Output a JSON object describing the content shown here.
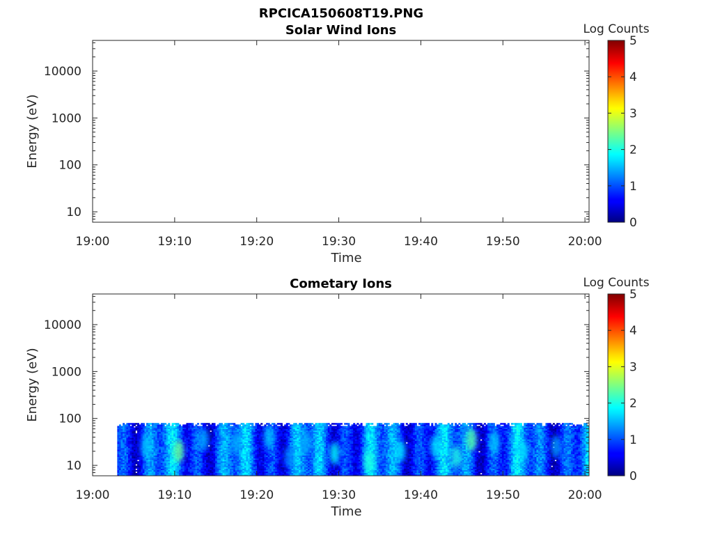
{
  "figure": {
    "title": "RPCICA150608T19.PNG"
  },
  "chart_data": [
    {
      "type": "heatmap",
      "title": "Solar Wind Ions",
      "xlabel": "Time",
      "ylabel": "Energy (eV)",
      "x_ticks": [
        "19:00",
        "19:10",
        "19:20",
        "19:30",
        "19:40",
        "19:50",
        "20:00"
      ],
      "xlim_minutes": [
        0,
        60.5
      ],
      "y_scale": "log",
      "y_ticks": [
        10,
        100,
        1000,
        10000
      ],
      "y_tick_labels": [
        "10",
        "100",
        "1000",
        "10000"
      ],
      "ylim": [
        6,
        45000
      ],
      "colorbar": {
        "label": "Log Counts",
        "range": [
          0,
          5
        ],
        "ticks": [
          "0",
          "1",
          "2",
          "3",
          "4",
          "5"
        ],
        "colormap": "jet"
      },
      "data_present": false,
      "data_range": null
    },
    {
      "type": "heatmap",
      "title": "Cometary Ions",
      "xlabel": "Time",
      "ylabel": "Energy (eV)",
      "x_ticks": [
        "19:00",
        "19:10",
        "19:20",
        "19:30",
        "19:40",
        "19:50",
        "20:00"
      ],
      "xlim_minutes": [
        0,
        60.5
      ],
      "y_scale": "log",
      "y_ticks": [
        10,
        100,
        1000,
        10000
      ],
      "y_tick_labels": [
        "10",
        "100",
        "1000",
        "10000"
      ],
      "ylim": [
        6,
        45000
      ],
      "colorbar": {
        "label": "Log Counts",
        "range": [
          0,
          5
        ],
        "ticks": [
          "0",
          "1",
          "2",
          "3",
          "4",
          "5"
        ],
        "colormap": "jet"
      },
      "data_present": true,
      "data_range": {
        "time_start_minutes": 3.0,
        "time_end_minutes": 60.5,
        "energy_min_eV": 6,
        "energy_max_eV": 80
      },
      "hotspots": [
        {
          "time_minutes": 10.5,
          "energy_eV": 20,
          "log_counts": 2.4
        },
        {
          "time_minutes": 46.2,
          "energy_eV": 35,
          "log_counts": 2.3
        },
        {
          "time_minutes": 44.3,
          "energy_eV": 15,
          "log_counts": 2.0
        },
        {
          "time_minutes": 29.5,
          "energy_eV": 18,
          "log_counts": 1.9
        },
        {
          "time_minutes": 33.7,
          "energy_eV": 12,
          "log_counts": 2.0
        },
        {
          "time_minutes": 37.5,
          "energy_eV": 20,
          "log_counts": 1.8
        },
        {
          "time_minutes": 41.8,
          "energy_eV": 25,
          "log_counts": 1.8
        },
        {
          "time_minutes": 52.5,
          "energy_eV": 20,
          "log_counts": 1.7
        },
        {
          "time_minutes": 6.5,
          "energy_eV": 25,
          "log_counts": 1.6
        },
        {
          "time_minutes": 21.5,
          "energy_eV": 40,
          "log_counts": 1.6
        },
        {
          "time_minutes": 17.5,
          "energy_eV": 30,
          "log_counts": 1.5
        },
        {
          "time_minutes": 26.0,
          "energy_eV": 30,
          "log_counts": 1.5
        },
        {
          "time_minutes": 49.0,
          "energy_eV": 30,
          "log_counts": 1.6
        },
        {
          "time_minutes": 56.5,
          "energy_eV": 25,
          "log_counts": 1.4
        },
        {
          "time_minutes": 13.5,
          "energy_eV": 35,
          "log_counts": 1.5
        },
        {
          "time_minutes": 24.0,
          "energy_eV": 15,
          "log_counts": 1.3
        }
      ]
    }
  ]
}
